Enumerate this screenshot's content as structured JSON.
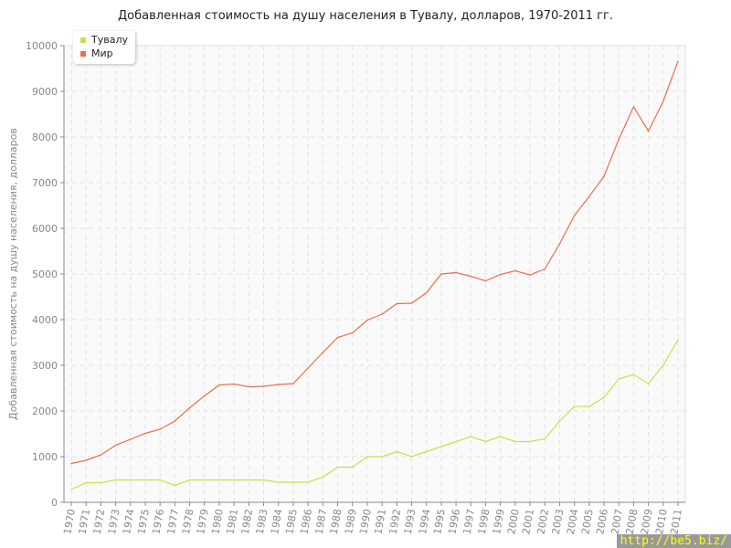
{
  "chart_data": {
    "type": "line",
    "title": "Добавленная стоимость на душу населения в Тувалу, долларов, 1970-2011 гг.",
    "ylabel": "Добавленная стоимость на душу населения, долларов",
    "xlabel": "",
    "ylim": [
      0,
      10000
    ],
    "yticks": [
      0,
      1000,
      2000,
      3000,
      4000,
      5000,
      6000,
      7000,
      8000,
      9000,
      10000
    ],
    "grid": true,
    "legend_position": "top-left",
    "x": [
      1970,
      1971,
      1972,
      1973,
      1974,
      1975,
      1976,
      1977,
      1978,
      1979,
      1980,
      1981,
      1982,
      1983,
      1984,
      1985,
      1986,
      1987,
      1988,
      1989,
      1990,
      1991,
      1992,
      1993,
      1994,
      1995,
      1996,
      1997,
      1998,
      1999,
      2000,
      2001,
      2002,
      2003,
      2004,
      2005,
      2006,
      2007,
      2008,
      2009,
      2010,
      2011
    ],
    "series": [
      {
        "name": "Тувалу",
        "color": "#c8e04a",
        "values": [
          280,
          430,
          430,
          490,
          490,
          490,
          490,
          370,
          490,
          490,
          490,
          490,
          490,
          490,
          440,
          440,
          440,
          550,
          770,
          770,
          1000,
          1000,
          1110,
          1000,
          1110,
          1220,
          1330,
          1440,
          1330,
          1440,
          1330,
          1330,
          1390,
          1780,
          2100,
          2100,
          2300,
          2700,
          2800,
          2600,
          3000,
          3560
        ]
      },
      {
        "name": "Мир",
        "color": "#e8704a",
        "values": [
          850,
          920,
          1040,
          1250,
          1380,
          1510,
          1600,
          1780,
          2070,
          2330,
          2570,
          2590,
          2530,
          2540,
          2580,
          2600,
          2940,
          3280,
          3610,
          3710,
          3990,
          4120,
          4350,
          4360,
          4590,
          5000,
          5030,
          4950,
          4850,
          4990,
          5070,
          4980,
          5110,
          5660,
          6280,
          6700,
          7140,
          7950,
          8660,
          8130,
          8780,
          9660
        ]
      }
    ]
  },
  "watermark": "http://be5.biz/"
}
